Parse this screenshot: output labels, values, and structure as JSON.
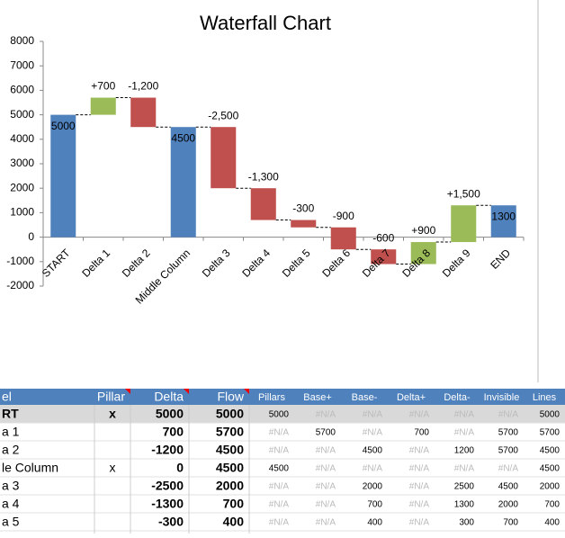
{
  "chart_data": {
    "type": "waterfall",
    "title": "Waterfall Chart",
    "categories": [
      "START",
      "Delta 1",
      "Delta 2",
      "Middle Column",
      "Delta 3",
      "Delta 4",
      "Delta 5",
      "Delta 6",
      "Delta 7",
      "Delta 8",
      "Delta 9",
      "END"
    ],
    "values": [
      5000,
      700,
      -1200,
      4500,
      -2500,
      -1300,
      -300,
      -900,
      -600,
      900,
      1500,
      1300
    ],
    "value_labels": [
      "5000",
      "+700",
      "-1,200",
      "4500",
      "-2,500",
      "-1,300",
      "-300",
      "-900",
      "-600",
      "+900",
      "+1,500",
      "1300"
    ],
    "kinds": [
      "total",
      "change",
      "change",
      "total",
      "change",
      "change",
      "change",
      "change",
      "change",
      "change",
      "change",
      "total"
    ],
    "colors": {
      "total": "#4f81bd",
      "increase": "#9bbb59",
      "decrease": "#c0504d"
    },
    "ylim": [
      -2000,
      8000
    ],
    "yticks": [
      -2000,
      -1000,
      0,
      1000,
      2000,
      3000,
      4000,
      5000,
      6000,
      7000,
      8000
    ]
  },
  "table": {
    "header": [
      "el",
      "Pillar",
      "Delta",
      "Flow",
      "Pillars",
      "Base+",
      "Base-",
      "Delta+",
      "Delta-",
      "Invisible",
      "Lines"
    ],
    "rows": [
      [
        "RT",
        "x",
        "5000",
        "5000",
        "5000",
        "#N/A",
        "#N/A",
        "#N/A",
        "#N/A",
        "#N/A",
        "5000"
      ],
      [
        "a 1",
        "",
        "700",
        "5700",
        "#N/A",
        "5700",
        "#N/A",
        "700",
        "#N/A",
        "5700",
        "5700"
      ],
      [
        "a 2",
        "",
        "-1200",
        "4500",
        "#N/A",
        "#N/A",
        "4500",
        "#N/A",
        "1200",
        "5700",
        "4500"
      ],
      [
        "le Column",
        "x",
        "0",
        "4500",
        "4500",
        "#N/A",
        "#N/A",
        "#N/A",
        "#N/A",
        "#N/A",
        "4500"
      ],
      [
        "a 3",
        "",
        "-2500",
        "2000",
        "#N/A",
        "#N/A",
        "2000",
        "#N/A",
        "2500",
        "4500",
        "2000"
      ],
      [
        "a 4",
        "",
        "-1300",
        "700",
        "#N/A",
        "#N/A",
        "700",
        "#N/A",
        "1300",
        "2000",
        "700"
      ],
      [
        "a 5",
        "",
        "-300",
        "400",
        "#N/A",
        "#N/A",
        "400",
        "#N/A",
        "300",
        "700",
        "400"
      ]
    ]
  }
}
